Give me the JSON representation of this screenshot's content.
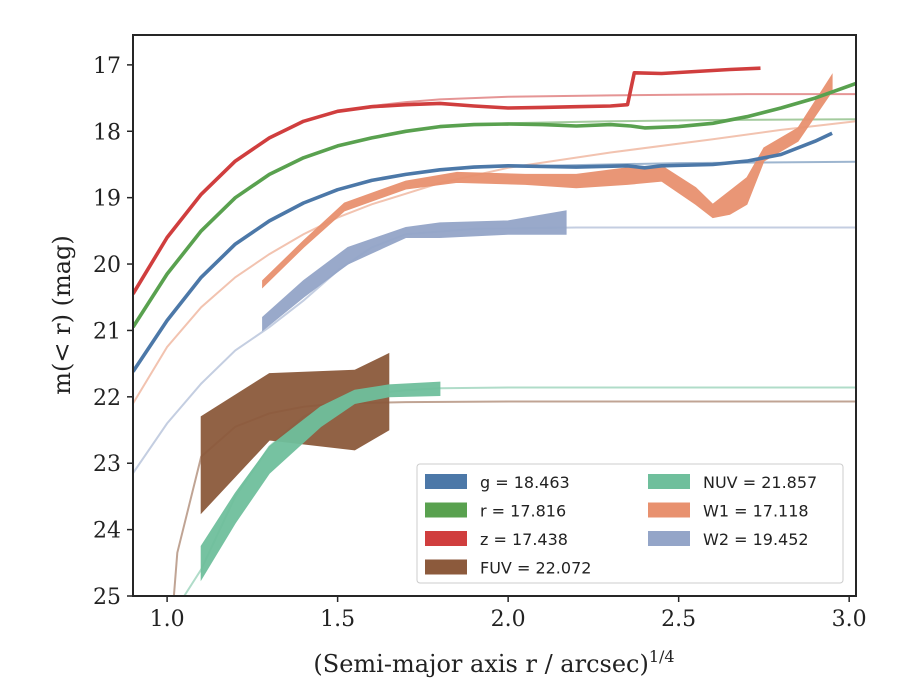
{
  "chart_data": {
    "type": "line",
    "xlabel": "(Semi-major axis r / arcsec)",
    "xlabel_superscript": "1/4",
    "ylabel": "m(< r) (mag)",
    "xlim": [
      0.9,
      3.02
    ],
    "ylim": [
      25,
      16.55
    ],
    "y_inverted": true,
    "xticks": [
      1.0,
      1.5,
      2.0,
      2.5,
      3.0
    ],
    "xtick_labels": [
      "1.0",
      "1.5",
      "2.0",
      "2.5",
      "3.0"
    ],
    "yticks": [
      17,
      18,
      19,
      20,
      21,
      22,
      23,
      24,
      25
    ],
    "ytick_labels": [
      "17",
      "18",
      "19",
      "20",
      "21",
      "22",
      "23",
      "24",
      "25"
    ],
    "grid": false,
    "legend_position": "lower-right",
    "legend_columns": 2,
    "series": [
      {
        "name": "g",
        "value": "18.463",
        "color": "#4c78a8",
        "legend_text": "g = 18.463",
        "model": [
          [
            0.9,
            21.62
          ],
          [
            1.0,
            20.85
          ],
          [
            1.1,
            20.2
          ],
          [
            1.2,
            19.7
          ],
          [
            1.3,
            19.35
          ],
          [
            1.4,
            19.08
          ],
          [
            1.5,
            18.88
          ],
          [
            1.6,
            18.74
          ],
          [
            1.7,
            18.65
          ],
          [
            1.8,
            18.59
          ],
          [
            1.9,
            18.55
          ],
          [
            2.0,
            18.53
          ],
          [
            2.2,
            18.51
          ],
          [
            2.5,
            18.48
          ],
          [
            3.02,
            18.46
          ]
        ],
        "profile": [
          [
            0.9,
            21.62
          ],
          [
            1.0,
            20.85
          ],
          [
            1.1,
            20.2
          ],
          [
            1.2,
            19.7
          ],
          [
            1.3,
            19.35
          ],
          [
            1.4,
            19.08
          ],
          [
            1.5,
            18.88
          ],
          [
            1.6,
            18.74
          ],
          [
            1.7,
            18.65
          ],
          [
            1.8,
            18.58
          ],
          [
            1.9,
            18.54
          ],
          [
            2.0,
            18.52
          ],
          [
            2.2,
            18.54
          ],
          [
            2.35,
            18.52
          ],
          [
            2.4,
            18.55
          ],
          [
            2.45,
            18.52
          ],
          [
            2.6,
            18.5
          ],
          [
            2.7,
            18.45
          ],
          [
            2.8,
            18.35
          ],
          [
            2.9,
            18.15
          ],
          [
            2.95,
            18.03
          ]
        ],
        "band": []
      },
      {
        "name": "r",
        "value": "17.816",
        "color": "#59a14f",
        "legend_text": "r = 17.816",
        "model": [
          [
            0.9,
            20.95
          ],
          [
            1.0,
            20.15
          ],
          [
            1.1,
            19.5
          ],
          [
            1.2,
            19.0
          ],
          [
            1.3,
            18.65
          ],
          [
            1.4,
            18.4
          ],
          [
            1.5,
            18.22
          ],
          [
            1.6,
            18.1
          ],
          [
            1.7,
            18.0
          ],
          [
            1.8,
            17.94
          ],
          [
            1.9,
            17.9
          ],
          [
            2.0,
            17.88
          ],
          [
            2.3,
            17.85
          ],
          [
            2.6,
            17.83
          ],
          [
            3.02,
            17.82
          ]
        ],
        "profile": [
          [
            0.9,
            20.95
          ],
          [
            1.0,
            20.15
          ],
          [
            1.1,
            19.5
          ],
          [
            1.2,
            19.0
          ],
          [
            1.3,
            18.65
          ],
          [
            1.4,
            18.4
          ],
          [
            1.5,
            18.22
          ],
          [
            1.6,
            18.1
          ],
          [
            1.7,
            18.0
          ],
          [
            1.8,
            17.93
          ],
          [
            1.9,
            17.9
          ],
          [
            2.0,
            17.89
          ],
          [
            2.1,
            17.9
          ],
          [
            2.2,
            17.92
          ],
          [
            2.3,
            17.9
          ],
          [
            2.36,
            17.92
          ],
          [
            2.4,
            17.95
          ],
          [
            2.5,
            17.93
          ],
          [
            2.6,
            17.88
          ],
          [
            2.7,
            17.78
          ],
          [
            2.8,
            17.65
          ],
          [
            2.9,
            17.5
          ],
          [
            3.02,
            17.28
          ]
        ],
        "band": []
      },
      {
        "name": "z",
        "value": "17.438",
        "color": "#d03e3e",
        "legend_text": "z = 17.438",
        "model": [
          [
            0.9,
            20.45
          ],
          [
            1.0,
            19.6
          ],
          [
            1.1,
            18.95
          ],
          [
            1.2,
            18.45
          ],
          [
            1.3,
            18.1
          ],
          [
            1.4,
            17.85
          ],
          [
            1.5,
            17.7
          ],
          [
            1.6,
            17.62
          ],
          [
            1.7,
            17.56
          ],
          [
            1.8,
            17.52
          ],
          [
            2.0,
            17.48
          ],
          [
            2.3,
            17.46
          ],
          [
            2.7,
            17.44
          ],
          [
            3.02,
            17.44
          ]
        ],
        "profile": [
          [
            0.9,
            20.45
          ],
          [
            1.0,
            19.6
          ],
          [
            1.1,
            18.95
          ],
          [
            1.2,
            18.45
          ],
          [
            1.3,
            18.1
          ],
          [
            1.4,
            17.85
          ],
          [
            1.5,
            17.7
          ],
          [
            1.6,
            17.63
          ],
          [
            1.7,
            17.6
          ],
          [
            1.8,
            17.58
          ],
          [
            1.9,
            17.62
          ],
          [
            2.0,
            17.65
          ],
          [
            2.1,
            17.64
          ],
          [
            2.2,
            17.63
          ],
          [
            2.3,
            17.62
          ],
          [
            2.35,
            17.6
          ],
          [
            2.37,
            17.12
          ],
          [
            2.45,
            17.13
          ],
          [
            2.55,
            17.1
          ],
          [
            2.65,
            17.07
          ],
          [
            2.74,
            17.05
          ]
        ],
        "band": []
      },
      {
        "name": "FUV",
        "value": "22.072",
        "color": "#8c5a3c",
        "legend_text": "FUV = 22.072",
        "model": [
          [
            1.02,
            25.0
          ],
          [
            1.03,
            24.35
          ],
          [
            1.1,
            22.9
          ],
          [
            1.2,
            22.45
          ],
          [
            1.3,
            22.25
          ],
          [
            1.4,
            22.15
          ],
          [
            1.5,
            22.1
          ],
          [
            1.7,
            22.08
          ],
          [
            2.0,
            22.07
          ],
          [
            3.02,
            22.07
          ]
        ],
        "profile": [],
        "band": [
          [
            1.1,
            22.3,
            23.75
          ],
          [
            1.3,
            21.65,
            22.65
          ],
          [
            1.55,
            21.6,
            22.8
          ],
          [
            1.65,
            21.35,
            22.5
          ]
        ]
      },
      {
        "name": "NUV",
        "value": "21.857",
        "color": "#6fbf9c",
        "legend_text": "NUV = 21.857",
        "model": [
          [
            1.05,
            25.0
          ],
          [
            1.1,
            24.6
          ],
          [
            1.2,
            23.5
          ],
          [
            1.3,
            22.75
          ],
          [
            1.4,
            22.3
          ],
          [
            1.5,
            22.05
          ],
          [
            1.6,
            21.95
          ],
          [
            1.7,
            21.9
          ],
          [
            1.8,
            21.87
          ],
          [
            2.0,
            21.86
          ],
          [
            3.02,
            21.86
          ]
        ],
        "profile": [],
        "band": [
          [
            1.1,
            24.25,
            24.75
          ],
          [
            1.2,
            23.45,
            23.9
          ],
          [
            1.3,
            22.75,
            23.15
          ],
          [
            1.45,
            22.15,
            22.45
          ],
          [
            1.55,
            21.9,
            22.1
          ],
          [
            1.65,
            21.82,
            22.0
          ],
          [
            1.8,
            21.78,
            21.98
          ]
        ]
      },
      {
        "name": "W1",
        "value": "17.118",
        "color": "#e8916f",
        "legend_text": "W1 = 17.118",
        "model": [
          [
            0.9,
            22.1
          ],
          [
            1.0,
            21.25
          ],
          [
            1.1,
            20.65
          ],
          [
            1.2,
            20.2
          ],
          [
            1.3,
            19.85
          ],
          [
            1.4,
            19.55
          ],
          [
            1.5,
            19.3
          ],
          [
            1.6,
            19.1
          ],
          [
            1.8,
            18.78
          ],
          [
            2.0,
            18.55
          ],
          [
            2.3,
            18.32
          ],
          [
            2.6,
            18.12
          ],
          [
            2.8,
            17.98
          ],
          [
            3.02,
            17.85
          ]
        ],
        "profile": [],
        "band": [
          [
            1.28,
            20.25,
            20.35
          ],
          [
            1.4,
            19.65,
            19.75
          ],
          [
            1.52,
            19.08,
            19.2
          ],
          [
            1.7,
            18.75,
            18.87
          ],
          [
            1.85,
            18.62,
            18.77
          ],
          [
            2.05,
            18.65,
            18.8
          ],
          [
            2.2,
            18.65,
            18.85
          ],
          [
            2.35,
            18.55,
            18.8
          ],
          [
            2.45,
            18.52,
            18.75
          ],
          [
            2.55,
            18.85,
            19.1
          ],
          [
            2.6,
            19.1,
            19.3
          ],
          [
            2.65,
            18.9,
            19.25
          ],
          [
            2.7,
            18.7,
            19.1
          ],
          [
            2.75,
            18.25,
            18.45
          ],
          [
            2.85,
            17.95,
            18.15
          ],
          [
            2.95,
            17.15,
            17.4
          ]
        ]
      },
      {
        "name": "W2",
        "value": "19.452",
        "color": "#94a5c8",
        "legend_text": "W2 = 19.452",
        "model": [
          [
            0.9,
            23.15
          ],
          [
            1.0,
            22.4
          ],
          [
            1.1,
            21.8
          ],
          [
            1.2,
            21.3
          ],
          [
            1.3,
            20.95
          ],
          [
            1.4,
            20.55
          ],
          [
            1.5,
            20.1
          ],
          [
            1.6,
            19.75
          ],
          [
            1.7,
            19.55
          ],
          [
            1.9,
            19.47
          ],
          [
            2.2,
            19.45
          ],
          [
            3.02,
            19.45
          ]
        ],
        "profile": [],
        "band": [
          [
            1.28,
            20.8,
            21.0
          ],
          [
            1.4,
            20.25,
            20.5
          ],
          [
            1.53,
            19.75,
            20.0
          ],
          [
            1.7,
            19.45,
            19.6
          ],
          [
            1.8,
            19.38,
            19.6
          ],
          [
            2.0,
            19.35,
            19.55
          ],
          [
            2.17,
            19.2,
            19.55
          ]
        ]
      }
    ]
  }
}
